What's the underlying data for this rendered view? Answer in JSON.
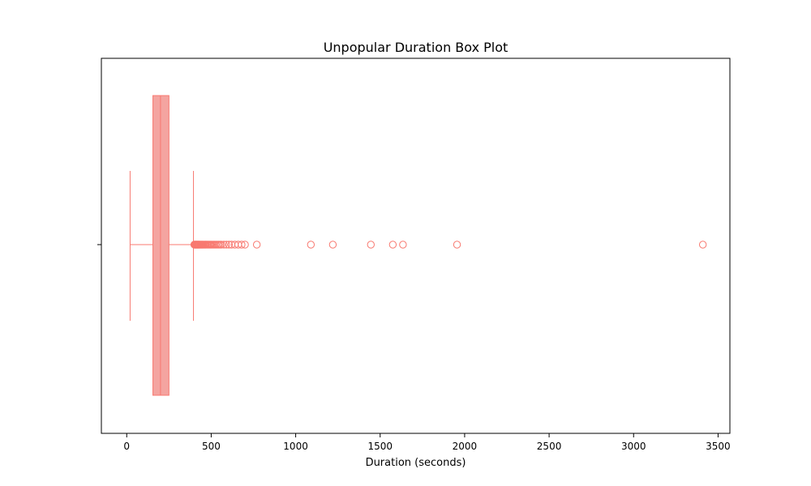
{
  "chart_data": {
    "type": "box",
    "orientation": "horizontal",
    "title": "Unpopular Duration Box Plot",
    "xlabel": "Duration (seconds)",
    "ylabel": "",
    "xlim": [
      -150,
      3570
    ],
    "xticks": [
      0,
      500,
      1000,
      1500,
      2000,
      2500,
      3000,
      3500
    ],
    "xtick_labels": [
      "0",
      "500",
      "1000",
      "1500",
      "2000",
      "2500",
      "3000",
      "3500"
    ],
    "grid": false,
    "color": "#f87970",
    "box_fill": "#f4a4a0",
    "box": {
      "whisker_low": 20,
      "q1": 155,
      "median": 200,
      "q3": 250,
      "whisker_high": 395
    },
    "outliers": [
      400,
      403,
      406,
      409,
      412,
      415,
      418,
      421,
      424,
      427,
      430,
      434,
      438,
      442,
      446,
      450,
      455,
      460,
      465,
      470,
      476,
      482,
      488,
      494,
      500,
      507,
      514,
      521,
      528,
      536,
      544,
      552,
      560,
      575,
      590,
      605,
      620,
      640,
      660,
      680,
      700,
      770,
      1090,
      1220,
      1445,
      1575,
      1635,
      1955,
      3410
    ]
  }
}
